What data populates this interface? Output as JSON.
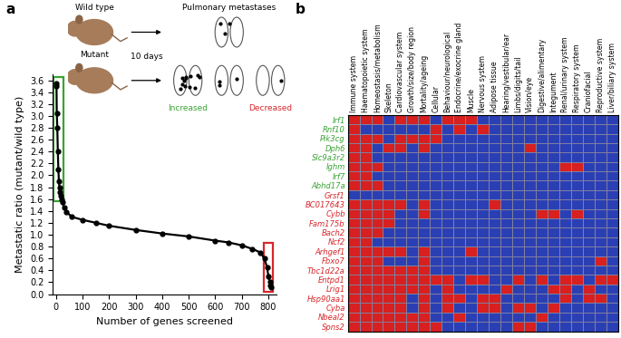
{
  "chart_data": [
    {
      "type": "scatter",
      "panel_label": "a",
      "x_label": "Number of genes screened",
      "y_label": "Metastatic ratio (mutant/wild type)",
      "x": [
        1,
        2,
        3,
        5,
        7,
        9,
        11,
        13,
        15,
        18,
        21,
        25,
        30,
        40,
        60,
        100,
        150,
        200,
        300,
        400,
        500,
        600,
        650,
        700,
        740,
        770,
        785,
        795,
        800,
        805,
        808,
        810
      ],
      "values": [
        3.55,
        3.5,
        3.05,
        2.8,
        2.4,
        2.1,
        1.9,
        1.8,
        1.72,
        1.65,
        1.6,
        1.55,
        1.45,
        1.38,
        1.3,
        1.25,
        1.2,
        1.15,
        1.08,
        1.02,
        0.97,
        0.9,
        0.87,
        0.82,
        0.76,
        0.7,
        0.6,
        0.45,
        0.3,
        0.2,
        0.15,
        0.12
      ],
      "color": "#000000",
      "marker": "o",
      "line_style": "solid",
      "xlim": [
        -12,
        830
      ],
      "xticks": [
        0,
        100,
        200,
        300,
        400,
        500,
        600,
        700,
        800
      ],
      "ylim": [
        0,
        3.7
      ],
      "yticks": [
        {
          "value": 0,
          "label": "0.0"
        },
        0.2,
        0.4,
        0.6,
        0.8,
        {
          "value": 1,
          "label": "1.0"
        },
        1.2,
        1.4,
        1.6,
        1.8,
        {
          "value": 2,
          "label": "2.0"
        },
        2.2,
        2.4,
        2.6,
        2.8,
        {
          "value": 3,
          "label": "3.0"
        },
        3.2,
        3.4,
        3.6
      ],
      "grid": false,
      "diagram": {
        "wild_type": "Wild type",
        "mutant": "Mutant",
        "outcome": "Pulmonary metastases",
        "time": "10 days"
      },
      "highlights": [
        {
          "label": "Increased",
          "color": "#3aa335",
          "xlim": [
            -8,
            28
          ],
          "ylim": [
            1.57,
            3.66
          ]
        },
        {
          "label": "Decreased",
          "color": "#d7262b",
          "xlim": [
            782,
            818
          ],
          "ylim": [
            0.04,
            0.86
          ]
        }
      ]
    },
    {
      "type": "heatmap",
      "panel_label": "b",
      "categories": [
        "Immune system",
        "Haematopoietic system",
        "Homeostasis/metabolism",
        "Skeleton",
        "Cardiovascular system",
        "Growth/size/body region",
        "Mortality/ageing",
        "Cellular",
        "Behaviour/neurological",
        "Endocrine/exocrine gland",
        "Muscle",
        "Nervous system",
        "Adipose tissue",
        "Hearing/vestibular/ear",
        "Limbs/digits/tail",
        "Vision/eye",
        "Digestive/alimentary",
        "Integument",
        "Renal/urinary system",
        "Respiratory system",
        "Craniofacial",
        "Reproductive system",
        "Liver/biliary system"
      ],
      "colors": [
        "#2b3fb4",
        "#d7201f"
      ],
      "series": [
        {
          "name": "Irf1",
          "color": "#3aa335",
          "values": [
            1,
            1,
            1,
            0,
            1,
            1,
            1,
            0,
            1,
            1,
            1,
            0,
            0,
            0,
            0,
            0,
            0,
            0,
            0,
            0,
            0,
            0,
            0
          ]
        },
        {
          "name": "Rnf10",
          "color": "#3aa335",
          "values": [
            1,
            0,
            0,
            0,
            0,
            0,
            0,
            1,
            0,
            1,
            0,
            1,
            0,
            0,
            0,
            0,
            0,
            0,
            0,
            0,
            0,
            0,
            0
          ]
        },
        {
          "name": "Pik3cg",
          "color": "#3aa335",
          "values": [
            1,
            1,
            1,
            0,
            1,
            1,
            1,
            1,
            0,
            0,
            0,
            0,
            0,
            0,
            0,
            0,
            0,
            0,
            0,
            0,
            0,
            0,
            0
          ]
        },
        {
          "name": "Dph6",
          "color": "#3aa335",
          "values": [
            1,
            1,
            0,
            1,
            1,
            0,
            1,
            0,
            0,
            0,
            0,
            0,
            0,
            0,
            0,
            1,
            0,
            0,
            0,
            0,
            0,
            0,
            0
          ]
        },
        {
          "name": "Slc9a3r2",
          "color": "#3aa335",
          "values": [
            1,
            1,
            0,
            0,
            0,
            0,
            0,
            0,
            0,
            0,
            0,
            0,
            0,
            0,
            0,
            0,
            0,
            0,
            0,
            0,
            0,
            0,
            0
          ]
        },
        {
          "name": "Ighm",
          "color": "#3aa335",
          "values": [
            1,
            1,
            1,
            0,
            0,
            0,
            0,
            0,
            0,
            0,
            0,
            0,
            0,
            0,
            0,
            0,
            0,
            0,
            1,
            1,
            0,
            0,
            0
          ]
        },
        {
          "name": "Irf7",
          "color": "#3aa335",
          "values": [
            1,
            1,
            0,
            0,
            0,
            0,
            0,
            0,
            0,
            0,
            0,
            0,
            0,
            0,
            0,
            0,
            0,
            0,
            0,
            0,
            0,
            0,
            0
          ]
        },
        {
          "name": "Abhd17a",
          "color": "#3aa335",
          "values": [
            1,
            1,
            1,
            0,
            0,
            0,
            0,
            0,
            0,
            0,
            0,
            0,
            0,
            0,
            0,
            0,
            0,
            0,
            0,
            0,
            0,
            0,
            0
          ]
        },
        {
          "name": "Grsf1",
          "color": "#d7262b",
          "values": [
            0,
            0,
            0,
            0,
            0,
            0,
            0,
            0,
            0,
            0,
            0,
            0,
            0,
            0,
            0,
            0,
            0,
            0,
            0,
            0,
            0,
            0,
            0
          ]
        },
        {
          "name": "BC017643",
          "color": "#d7262b",
          "values": [
            1,
            1,
            1,
            1,
            1,
            0,
            1,
            0,
            0,
            0,
            0,
            0,
            1,
            0,
            0,
            0,
            0,
            0,
            0,
            0,
            0,
            0,
            0
          ]
        },
        {
          "name": "Cybb",
          "color": "#d7262b",
          "values": [
            1,
            1,
            1,
            1,
            0,
            0,
            1,
            0,
            0,
            0,
            0,
            0,
            0,
            0,
            0,
            0,
            1,
            1,
            0,
            1,
            0,
            0,
            0
          ]
        },
        {
          "name": "Fam175b",
          "color": "#d7262b",
          "values": [
            1,
            1,
            1,
            1,
            0,
            0,
            0,
            0,
            0,
            0,
            0,
            0,
            0,
            0,
            0,
            0,
            0,
            0,
            0,
            0,
            0,
            0,
            0
          ]
        },
        {
          "name": "Bach2",
          "color": "#d7262b",
          "values": [
            1,
            1,
            1,
            0,
            0,
            0,
            0,
            0,
            0,
            0,
            0,
            0,
            0,
            0,
            0,
            0,
            0,
            0,
            0,
            0,
            0,
            0,
            0
          ]
        },
        {
          "name": "Ncf2",
          "color": "#d7262b",
          "values": [
            1,
            1,
            0,
            0,
            0,
            0,
            0,
            0,
            0,
            0,
            0,
            0,
            0,
            0,
            0,
            0,
            0,
            0,
            0,
            0,
            0,
            0,
            0
          ]
        },
        {
          "name": "Arhgef1",
          "color": "#d7262b",
          "values": [
            1,
            1,
            1,
            1,
            1,
            0,
            1,
            0,
            0,
            0,
            1,
            0,
            0,
            0,
            0,
            0,
            0,
            0,
            0,
            0,
            0,
            0,
            0
          ]
        },
        {
          "name": "Fbxo7",
          "color": "#d7262b",
          "values": [
            1,
            1,
            1,
            0,
            0,
            0,
            1,
            0,
            0,
            0,
            0,
            0,
            0,
            0,
            0,
            0,
            0,
            0,
            0,
            0,
            0,
            1,
            0
          ]
        },
        {
          "name": "Tbc1d22a",
          "color": "#d7262b",
          "values": [
            1,
            1,
            1,
            1,
            1,
            1,
            1,
            0,
            0,
            0,
            0,
            0,
            0,
            0,
            0,
            0,
            0,
            0,
            0,
            0,
            0,
            0,
            0
          ]
        },
        {
          "name": "Entpd1",
          "color": "#d7262b",
          "values": [
            1,
            1,
            1,
            1,
            1,
            1,
            1,
            1,
            1,
            0,
            1,
            1,
            0,
            0,
            1,
            0,
            1,
            0,
            1,
            1,
            0,
            1,
            1
          ]
        },
        {
          "name": "Lrig1",
          "color": "#d7262b",
          "values": [
            1,
            1,
            1,
            1,
            1,
            1,
            1,
            0,
            1,
            0,
            0,
            0,
            0,
            1,
            0,
            0,
            0,
            1,
            1,
            0,
            1,
            0,
            0
          ]
        },
        {
          "name": "Hsp90aa1",
          "color": "#d7262b",
          "values": [
            1,
            1,
            1,
            1,
            1,
            0,
            1,
            0,
            1,
            1,
            0,
            1,
            1,
            0,
            0,
            0,
            0,
            0,
            1,
            0,
            1,
            1,
            0
          ]
        },
        {
          "name": "Cyba",
          "color": "#d7262b",
          "values": [
            1,
            1,
            1,
            1,
            1,
            0,
            1,
            0,
            1,
            0,
            0,
            1,
            1,
            0,
            1,
            1,
            0,
            1,
            0,
            0,
            0,
            0,
            0
          ]
        },
        {
          "name": "Nbeal2",
          "color": "#d7262b",
          "values": [
            1,
            1,
            1,
            1,
            1,
            1,
            1,
            0,
            0,
            1,
            0,
            0,
            0,
            0,
            0,
            0,
            1,
            0,
            0,
            0,
            0,
            0,
            0
          ]
        },
        {
          "name": "Spns2",
          "color": "#d7262b",
          "values": [
            1,
            1,
            1,
            1,
            1,
            1,
            1,
            1,
            0,
            0,
            0,
            0,
            0,
            0,
            1,
            1,
            0,
            0,
            0,
            0,
            0,
            0,
            0
          ]
        }
      ]
    }
  ]
}
